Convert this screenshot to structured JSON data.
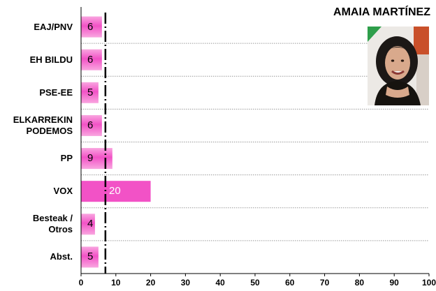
{
  "chart_data": {
    "type": "bar",
    "orientation": "horizontal",
    "title": "AMAIA MARTÍNEZ",
    "categories": [
      "EAJ/PNV",
      "EH BILDU",
      "PSE-EE",
      "ELKARREKIN\nPODEMOS",
      "PP",
      "VOX",
      "Besteak /\nOtros",
      "Abst."
    ],
    "values": [
      6,
      6,
      5,
      6,
      9,
      20,
      4,
      5
    ],
    "xlim": [
      0,
      100
    ],
    "xticks": [
      "0",
      "10",
      "20",
      "30",
      "40",
      "50",
      "60",
      "70",
      "80",
      "90",
      "100"
    ],
    "reference_line": 7,
    "grid": "horizontal dotted",
    "colors": {
      "bar": "#f252c6",
      "bar_highlight": "#f9a6e0",
      "reference": "#000000"
    }
  },
  "photo": {
    "icon": "portrait-photo"
  }
}
